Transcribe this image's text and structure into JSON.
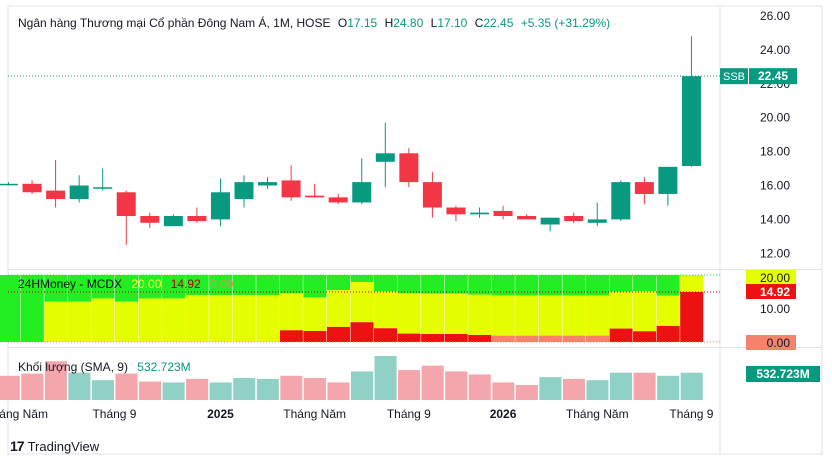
{
  "header": {
    "symbol_title": "Ngân hàng Thương mại Cổ phần Đông Nam Á, 1M, HOSE",
    "o_label": "O",
    "o_value": "17.15",
    "h_label": "H",
    "h_value": "24.80",
    "l_label": "L",
    "l_value": "17.10",
    "c_label": "C",
    "c_value": "22.45",
    "change": "+5.35 (+31.29%)"
  },
  "indicator": {
    "name": "24HMoney - MCDX",
    "value_1": "20.00",
    "value_2": "14.92",
    "value_3": "0.00"
  },
  "volume": {
    "label": "Khối lượng (SMA, 9)",
    "value": "532.723M"
  },
  "branding": {
    "logo_text": "TradingView"
  },
  "colors": {
    "up": "#089981",
    "down": "#f23645",
    "vol_up": "#8fd1c5",
    "vol_down": "#f5a6ac",
    "mcdx_green": "#22ee22",
    "mcdx_yellow": "#e5ff00",
    "mcdx_red": "#ee1111",
    "mcdx_salmon": "#f4836c"
  },
  "chart_data": [
    {
      "type": "candlestick",
      "y_ticks": [
        "26.00",
        "24.00",
        "22.00",
        "20.00",
        "18.00",
        "16.00",
        "14.00",
        "12.00"
      ],
      "ylim": [
        10.6,
        26.5
      ],
      "x_tick_labels": [
        "háng Năm",
        "Tháng 9",
        "2025",
        "Tháng Năm",
        "Tháng 9",
        "2026",
        "Tháng Năm",
        "Tháng 9"
      ],
      "last_price_label": {
        "symbol": "SSB",
        "price": "22.45",
        "value": 22.45
      },
      "candles": [
        {
          "o": 16.1,
          "h": 16.2,
          "l": 16.0,
          "c": 16.1
        },
        {
          "o": 16.1,
          "h": 16.3,
          "l": 15.5,
          "c": 15.6
        },
        {
          "o": 15.7,
          "h": 17.5,
          "l": 14.7,
          "c": 15.2
        },
        {
          "o": 15.2,
          "h": 16.6,
          "l": 15.0,
          "c": 16.0
        },
        {
          "o": 15.9,
          "h": 17.0,
          "l": 15.7,
          "c": 15.9
        },
        {
          "o": 15.6,
          "h": 15.7,
          "l": 12.5,
          "c": 14.2
        },
        {
          "o": 14.2,
          "h": 14.4,
          "l": 13.5,
          "c": 13.8
        },
        {
          "o": 13.6,
          "h": 14.3,
          "l": 13.6,
          "c": 14.2
        },
        {
          "o": 14.2,
          "h": 14.7,
          "l": 13.8,
          "c": 13.9
        },
        {
          "o": 14.0,
          "h": 16.4,
          "l": 13.6,
          "c": 15.6
        },
        {
          "o": 15.2,
          "h": 16.6,
          "l": 14.7,
          "c": 16.2
        },
        {
          "o": 16.0,
          "h": 16.5,
          "l": 15.8,
          "c": 16.2
        },
        {
          "o": 16.3,
          "h": 17.2,
          "l": 15.1,
          "c": 15.3
        },
        {
          "o": 15.4,
          "h": 16.1,
          "l": 15.3,
          "c": 15.3
        },
        {
          "o": 15.3,
          "h": 15.5,
          "l": 14.9,
          "c": 15.0
        },
        {
          "o": 15.0,
          "h": 17.6,
          "l": 14.9,
          "c": 16.2
        },
        {
          "o": 17.4,
          "h": 19.7,
          "l": 15.9,
          "c": 17.9
        },
        {
          "o": 17.9,
          "h": 18.2,
          "l": 15.9,
          "c": 16.2
        },
        {
          "o": 16.2,
          "h": 16.8,
          "l": 14.1,
          "c": 14.7
        },
        {
          "o": 14.7,
          "h": 14.8,
          "l": 13.9,
          "c": 14.3
        },
        {
          "o": 14.3,
          "h": 14.7,
          "l": 14.1,
          "c": 14.4
        },
        {
          "o": 14.5,
          "h": 14.8,
          "l": 14.0,
          "c": 14.2
        },
        {
          "o": 14.2,
          "h": 14.3,
          "l": 14.0,
          "c": 14.0
        },
        {
          "o": 13.7,
          "h": 14.1,
          "l": 13.3,
          "c": 14.1
        },
        {
          "o": 14.2,
          "h": 14.4,
          "l": 13.8,
          "c": 13.9
        },
        {
          "o": 13.8,
          "h": 15.0,
          "l": 13.6,
          "c": 14.0
        },
        {
          "o": 14.0,
          "h": 16.3,
          "l": 13.9,
          "c": 16.2
        },
        {
          "o": 16.2,
          "h": 16.5,
          "l": 14.9,
          "c": 15.5
        },
        {
          "o": 15.5,
          "h": 17.1,
          "l": 14.8,
          "c": 17.1
        },
        {
          "o": 17.15,
          "h": 24.8,
          "l": 17.1,
          "c": 22.45
        }
      ]
    },
    {
      "type": "stacked-bar",
      "name": "24HMoney - MCDX",
      "y_ticks": [
        "20.00",
        "10.00"
      ],
      "ylim": [
        0,
        20
      ],
      "value_labels": [
        "20.00",
        "14.92",
        "0.00"
      ],
      "values": [
        {
          "green": 20,
          "yellow": 0,
          "red": 0
        },
        {
          "green": 20,
          "yellow": 0,
          "red": 0
        },
        {
          "green": 8,
          "yellow": 12,
          "red": 0
        },
        {
          "green": 8,
          "yellow": 12,
          "red": 0
        },
        {
          "green": 7,
          "yellow": 13,
          "red": 0
        },
        {
          "green": 8,
          "yellow": 12,
          "red": 0
        },
        {
          "green": 7,
          "yellow": 13,
          "red": 0
        },
        {
          "green": 7,
          "yellow": 13,
          "red": 0
        },
        {
          "green": 6,
          "yellow": 14,
          "red": 0
        },
        {
          "green": 6,
          "yellow": 14,
          "red": 0
        },
        {
          "green": 6,
          "yellow": 14,
          "red": 0
        },
        {
          "green": 6,
          "yellow": 14,
          "red": 0
        },
        {
          "green": 6,
          "yellow": 11,
          "red": 3.5
        },
        {
          "green": 7,
          "yellow": 10,
          "red": 3.3
        },
        {
          "green": 5,
          "yellow": 11,
          "red": 4.5
        },
        {
          "green": 2,
          "yellow": 12,
          "red": 5.9
        },
        {
          "green": 5,
          "yellow": 11,
          "red": 4.1
        },
        {
          "green": 6,
          "yellow": 12,
          "red": 2.5
        },
        {
          "green": 6,
          "yellow": 12,
          "red": 2.4
        },
        {
          "green": 6,
          "yellow": 12,
          "red": 2.4
        },
        {
          "green": 6,
          "yellow": 12,
          "red": 2.1
        },
        {
          "green": 6,
          "yellow": 12,
          "salmon": 1.9
        },
        {
          "green": 6,
          "yellow": 12,
          "salmon": 1.9
        },
        {
          "green": 6,
          "yellow": 12,
          "salmon": 1.9
        },
        {
          "green": 6,
          "yellow": 12,
          "salmon": 1.9
        },
        {
          "green": 6,
          "yellow": 12,
          "salmon": 1.9
        },
        {
          "green": 5,
          "yellow": 11,
          "red": 4.0
        },
        {
          "green": 5,
          "yellow": 12,
          "red": 3.2
        },
        {
          "green": 6,
          "yellow": 9,
          "red": 4.8
        },
        {
          "green": 0,
          "yellow": 5,
          "red": 14.92
        }
      ]
    },
    {
      "type": "bar",
      "name": "Khối lượng (SMA, 9)",
      "value_label": "532.723M",
      "values": [
        {
          "v": 0.55,
          "up": false
        },
        {
          "v": 0.6,
          "up": false
        },
        {
          "v": 0.88,
          "up": false
        },
        {
          "v": 0.62,
          "up": true
        },
        {
          "v": 0.45,
          "up": true
        },
        {
          "v": 0.6,
          "up": false
        },
        {
          "v": 0.42,
          "up": false
        },
        {
          "v": 0.4,
          "up": true
        },
        {
          "v": 0.48,
          "up": false
        },
        {
          "v": 0.4,
          "up": true
        },
        {
          "v": 0.5,
          "up": true
        },
        {
          "v": 0.48,
          "up": true
        },
        {
          "v": 0.55,
          "up": false
        },
        {
          "v": 0.5,
          "up": false
        },
        {
          "v": 0.4,
          "up": false
        },
        {
          "v": 0.65,
          "up": true
        },
        {
          "v": 1.0,
          "up": true
        },
        {
          "v": 0.68,
          "up": false
        },
        {
          "v": 0.78,
          "up": false
        },
        {
          "v": 0.65,
          "up": false
        },
        {
          "v": 0.58,
          "up": false
        },
        {
          "v": 0.4,
          "up": false
        },
        {
          "v": 0.34,
          "up": false
        },
        {
          "v": 0.52,
          "up": true
        },
        {
          "v": 0.48,
          "up": false
        },
        {
          "v": 0.45,
          "up": true
        },
        {
          "v": 0.62,
          "up": true
        },
        {
          "v": 0.62,
          "up": false
        },
        {
          "v": 0.55,
          "up": true
        },
        {
          "v": 0.62,
          "up": true
        }
      ]
    }
  ]
}
